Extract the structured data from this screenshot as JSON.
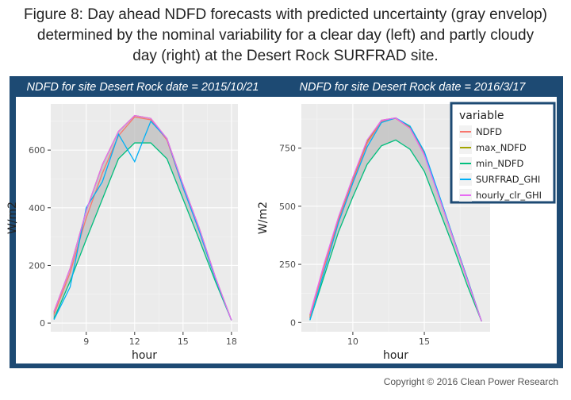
{
  "caption": {
    "figure_label": "Figure 8:",
    "line1_rest": " Day ahead NDFD forecasts with predicted uncertainty (gray envelop)",
    "line2": "determined by the nominal variability for a clear day (left) and partly cloudy",
    "line3": "day (right) at the Desert Rock SURFRAD site."
  },
  "copyright": "Copyright © 2016 Clean Power Research",
  "legend": {
    "title": "variable",
    "entries": [
      {
        "label": "NDFD",
        "color": "#f8766d"
      },
      {
        "label": "max_NDFD",
        "color": "#a3a500"
      },
      {
        "label": "min_NDFD",
        "color": "#00bf7d"
      },
      {
        "label": "SURFRAD_GHI",
        "color": "#00b0f6"
      },
      {
        "label": "hourly_clr_GHI",
        "color": "#e76bf3"
      }
    ]
  },
  "chart_data": [
    {
      "type": "line",
      "title": "NDFD for site Desert Rock date = 2015/10/21",
      "xlabel": "hour",
      "ylabel": "W/m2",
      "xlim": [
        6.8,
        18.4
      ],
      "ylim": [
        -30,
        760
      ],
      "xticks": [
        9,
        12,
        15,
        18
      ],
      "yticks": [
        0,
        200,
        400,
        600
      ],
      "x": [
        7,
        8,
        9,
        10,
        11,
        12,
        13,
        14,
        15,
        16,
        17,
        18
      ],
      "series": [
        {
          "name": "min_NDFD",
          "color": "#00bf7d",
          "values": [
            15,
            145,
            290,
            430,
            570,
            625,
            625,
            570,
            430,
            290,
            145,
            10
          ]
        },
        {
          "name": "max_NDFD",
          "color": "#a3a500",
          "values": [
            40,
            190,
            390,
            550,
            665,
            720,
            710,
            640,
            480,
            330,
            160,
            10
          ]
        },
        {
          "name": "NDFD",
          "color": "#f8766d",
          "values": [
            30,
            175,
            365,
            520,
            650,
            715,
            705,
            635,
            470,
            320,
            155,
            10
          ]
        },
        {
          "name": "SURFRAD_GHI",
          "color": "#00b0f6",
          "values": [
            12,
            125,
            400,
            490,
            655,
            560,
            700,
            640,
            470,
            320,
            155,
            10
          ]
        },
        {
          "name": "hourly_clr_GHI",
          "color": "#e76bf3",
          "values": [
            40,
            190,
            390,
            550,
            665,
            720,
            710,
            640,
            480,
            330,
            160,
            10
          ]
        }
      ],
      "envelope": {
        "lower": "min_NDFD",
        "upper": "max_NDFD",
        "color": "#bdbdbd"
      }
    },
    {
      "type": "line",
      "title": "NDFD for site Desert Rock date = 2016/3/17",
      "xlabel": "hour",
      "ylabel": "W/m2",
      "xlim": [
        6.4,
        19.6
      ],
      "ylim": [
        -40,
        940
      ],
      "xticks": [
        10,
        15
      ],
      "yticks": [
        0,
        250,
        500,
        750
      ],
      "x": [
        7,
        8,
        9,
        10,
        11,
        12,
        13,
        14,
        15,
        16,
        17,
        18,
        19
      ],
      "series": [
        {
          "name": "min_NDFD",
          "color": "#00bf7d",
          "values": [
            10,
            200,
            390,
            540,
            680,
            760,
            785,
            745,
            650,
            490,
            330,
            160,
            5
          ]
        },
        {
          "name": "max_NDFD",
          "color": "#a3a500",
          "values": [
            30,
            250,
            450,
            620,
            780,
            870,
            880,
            840,
            730,
            550,
            370,
            190,
            5
          ]
        },
        {
          "name": "NDFD",
          "color": "#f8766d",
          "values": [
            25,
            240,
            440,
            610,
            770,
            865,
            878,
            835,
            725,
            545,
            365,
            185,
            5
          ]
        },
        {
          "name": "SURFRAD_GHI",
          "color": "#00b0f6",
          "values": [
            10,
            220,
            430,
            600,
            755,
            860,
            880,
            845,
            735,
            555,
            370,
            190,
            5
          ]
        },
        {
          "name": "hourly_clr_GHI",
          "color": "#e76bf3",
          "values": [
            35,
            255,
            455,
            625,
            785,
            870,
            880,
            835,
            720,
            545,
            365,
            185,
            5
          ]
        }
      ],
      "envelope": {
        "lower": "min_NDFD",
        "upper": "max_NDFD",
        "color": "#bdbdbd"
      }
    }
  ]
}
